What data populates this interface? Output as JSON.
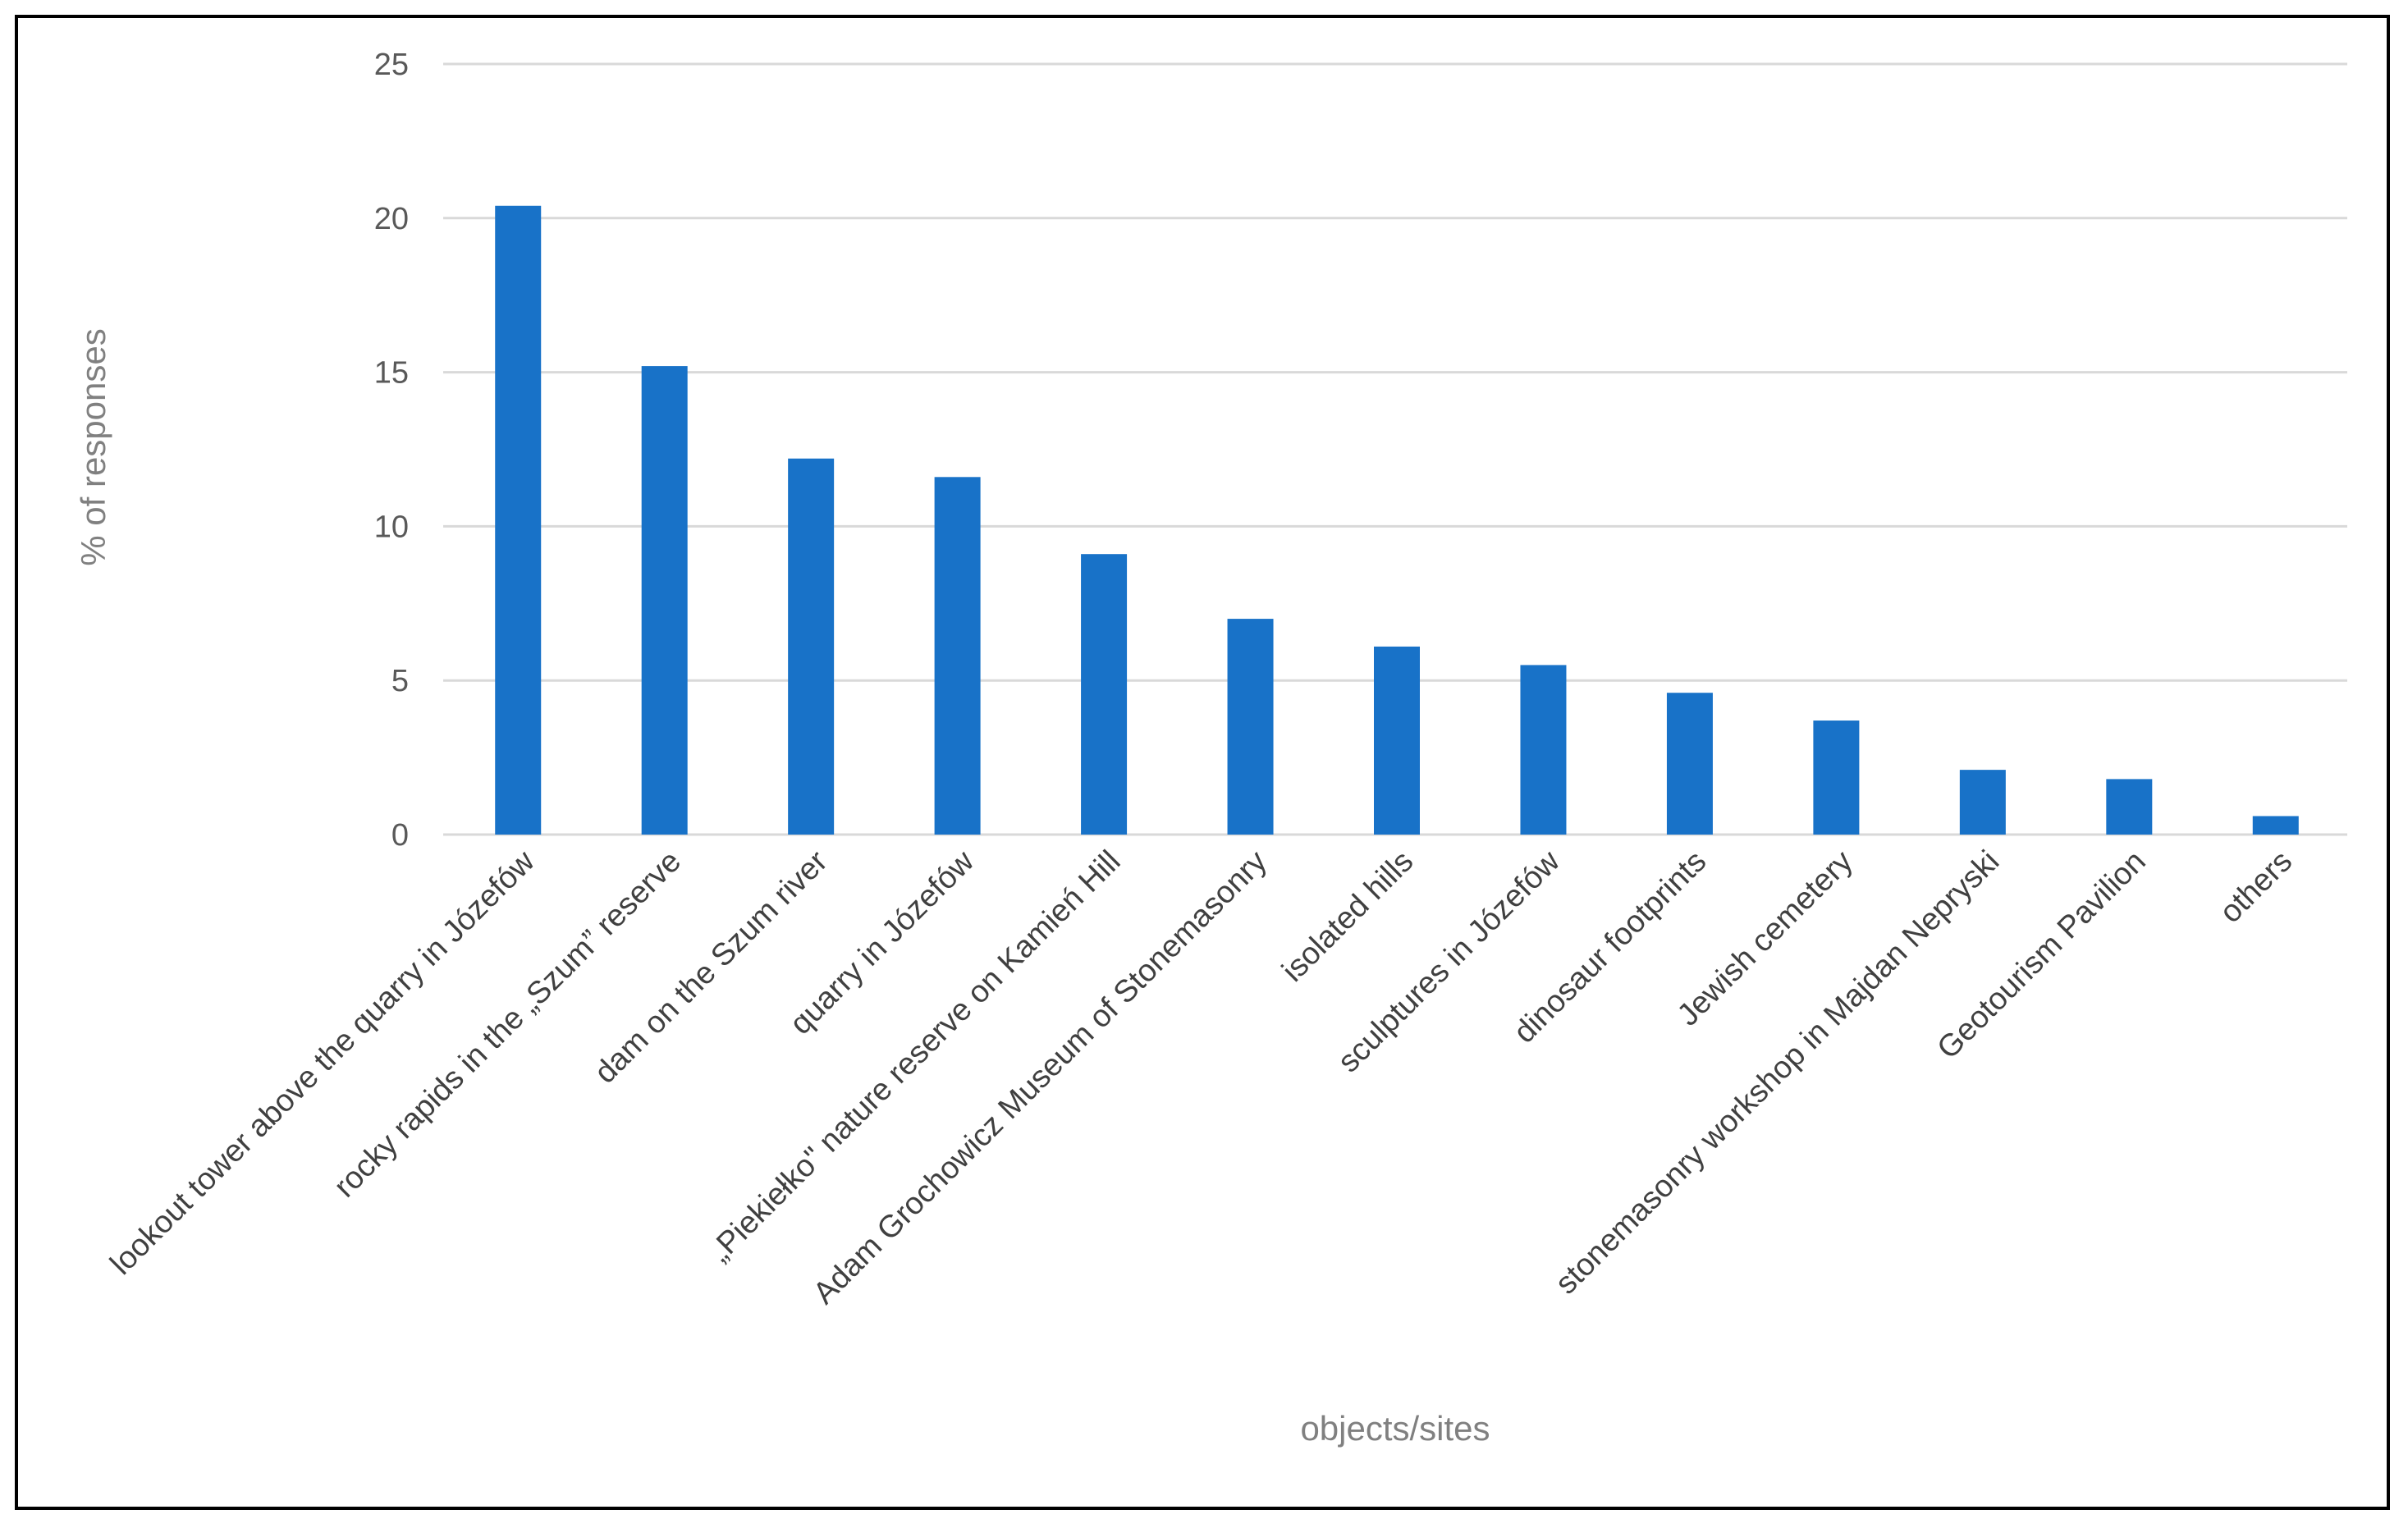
{
  "chart_data": {
    "type": "bar",
    "title": "",
    "xlabel": "objects/sites",
    "ylabel": "% of responses",
    "ylim": [
      0,
      25
    ],
    "yticks": [
      0,
      5,
      10,
      15,
      20,
      25
    ],
    "grid": true,
    "bar_color": "#1872C8",
    "categories": [
      "lookout tower above the quarry in Józefów",
      "rocky rapids in the „Szum” reserve",
      "dam on the Szum river",
      "quarry in Józefów",
      "„Piekiełko\" nature reserve on Kamień Hill",
      "Adam Grochowicz Museum of Stonemasonry",
      "isolated hills",
      "sculptures in Józefów",
      "dinosaur footprints",
      "Jewish cemetery",
      "stonemasonry workshop in Majdan Nepryski",
      "Geotourism Pavilion",
      "others"
    ],
    "values": [
      20.4,
      15.2,
      12.2,
      11.6,
      9.1,
      7.0,
      6.1,
      5.5,
      4.6,
      3.7,
      2.1,
      1.8,
      0.6
    ]
  }
}
